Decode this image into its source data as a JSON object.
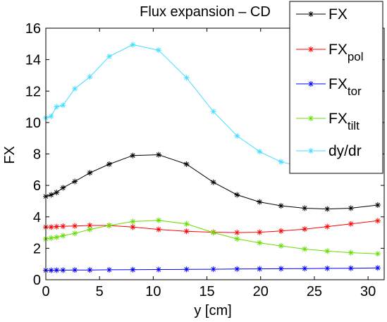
{
  "chart_data": {
    "type": "line",
    "title": "Flux expansion – CD",
    "xlabel": "y [cm]",
    "ylabel": "FX",
    "xlim": [
      0,
      31.5
    ],
    "ylim": [
      0,
      16
    ],
    "xticks": [
      0,
      5,
      10,
      15,
      20,
      25,
      30
    ],
    "yticks": [
      0,
      2,
      4,
      6,
      8,
      10,
      12,
      14,
      16
    ],
    "grid": false,
    "legend_position": "top-right",
    "series": [
      {
        "name": "FX",
        "color": "#000000",
        "marker": "asterisk",
        "x": [
          0,
          0.5,
          1,
          1.6,
          2.7,
          4.1,
          5.9,
          8.1,
          10.5,
          13.1,
          15.6,
          17.8,
          19.9,
          21.9,
          24.1,
          26.2,
          28.4,
          30.9
        ],
        "y": [
          5.3,
          5.4,
          5.55,
          5.85,
          6.25,
          6.8,
          7.35,
          7.9,
          7.95,
          7.35,
          6.2,
          5.4,
          4.95,
          4.7,
          4.55,
          4.5,
          4.55,
          4.75
        ]
      },
      {
        "name": "FX_pol",
        "color": "#ff0000",
        "marker": "asterisk",
        "x": [
          0,
          0.5,
          1,
          1.6,
          2.7,
          4.1,
          5.9,
          8.1,
          10.5,
          13.1,
          15.6,
          17.8,
          19.9,
          21.9,
          24.1,
          26.2,
          28.4,
          30.9
        ],
        "y": [
          3.35,
          3.35,
          3.38,
          3.4,
          3.42,
          3.45,
          3.45,
          3.35,
          3.2,
          3.08,
          3.02,
          3.0,
          3.02,
          3.1,
          3.22,
          3.38,
          3.55,
          3.75
        ]
      },
      {
        "name": "FX_tor",
        "color": "#0000ff",
        "marker": "asterisk",
        "x": [
          0,
          0.5,
          1,
          1.6,
          2.7,
          4.1,
          5.9,
          8.1,
          10.5,
          13.1,
          15.6,
          17.8,
          19.9,
          21.9,
          24.1,
          26.2,
          28.4,
          30.9
        ],
        "y": [
          0.6,
          0.6,
          0.61,
          0.61,
          0.62,
          0.62,
          0.63,
          0.64,
          0.65,
          0.66,
          0.67,
          0.68,
          0.69,
          0.7,
          0.71,
          0.72,
          0.73,
          0.75
        ]
      },
      {
        "name": "FX_tilt",
        "color": "#66dd00",
        "marker": "asterisk",
        "x": [
          0,
          0.5,
          1,
          1.6,
          2.7,
          4.1,
          5.9,
          8.1,
          10.5,
          13.1,
          15.6,
          17.8,
          19.9,
          21.9,
          24.1,
          26.2,
          28.4,
          30.9
        ],
        "y": [
          2.6,
          2.65,
          2.7,
          2.8,
          2.95,
          3.2,
          3.45,
          3.7,
          3.78,
          3.55,
          3.0,
          2.6,
          2.35,
          2.15,
          1.95,
          1.82,
          1.72,
          1.65
        ]
      },
      {
        "name": "dy/dr",
        "color": "#44ddff",
        "marker": "asterisk",
        "x": [
          0,
          0.5,
          1,
          1.6,
          2.7,
          4.1,
          5.9,
          8.1,
          10.5,
          13.1,
          15.6,
          17.8,
          19.9,
          21.9,
          24.1,
          26.2,
          28.4,
          30.9
        ],
        "y": [
          10.3,
          10.4,
          11.0,
          11.1,
          12.15,
          12.9,
          14.2,
          14.95,
          14.6,
          12.85,
          10.7,
          9.15,
          8.15,
          7.5,
          7.15,
          7.05,
          7.1,
          7.35
        ]
      }
    ]
  }
}
